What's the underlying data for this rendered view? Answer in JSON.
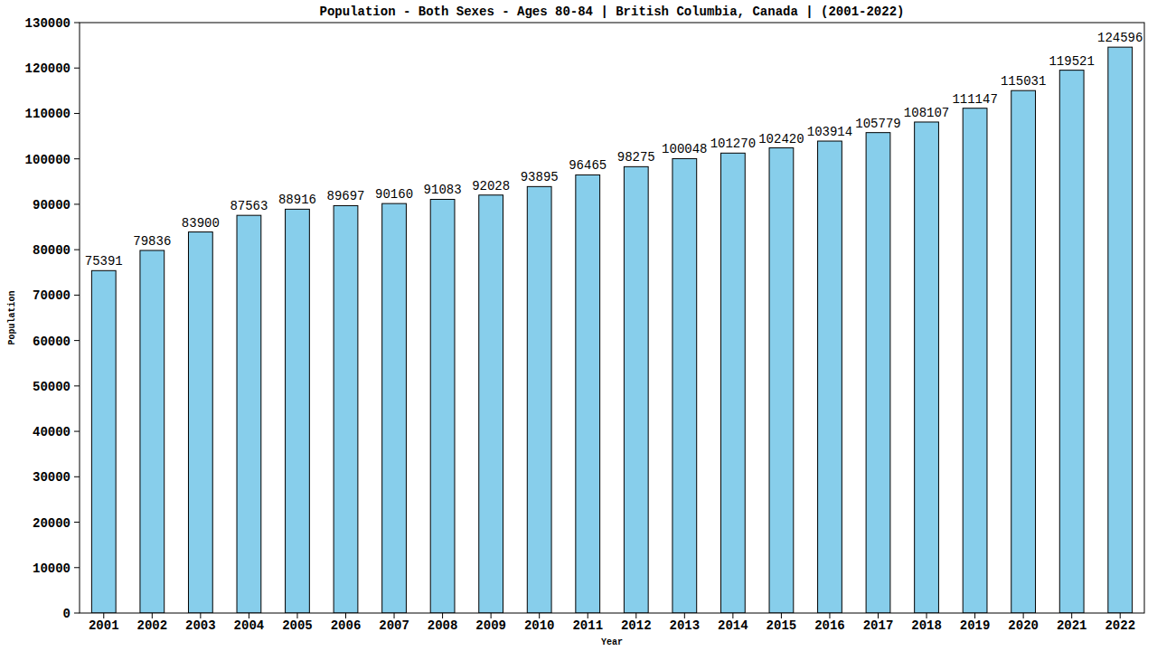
{
  "chart_data": {
    "type": "bar",
    "title": "Population - Both Sexes - Ages 80-84 | British Columbia, Canada |  (2001-2022)",
    "x_label": "Year",
    "y_label": "Population",
    "categories": [
      "2001",
      "2002",
      "2003",
      "2004",
      "2005",
      "2006",
      "2007",
      "2008",
      "2009",
      "2010",
      "2011",
      "2012",
      "2013",
      "2014",
      "2015",
      "2016",
      "2017",
      "2018",
      "2019",
      "2020",
      "2021",
      "2022"
    ],
    "values": [
      75391,
      79836,
      83900,
      87563,
      88916,
      89697,
      90160,
      91083,
      92028,
      93895,
      96465,
      98275,
      100048,
      101270,
      102420,
      103914,
      105779,
      108107,
      111147,
      115031,
      119521,
      124596
    ],
    "color": "#87ceeb",
    "ylim": [
      0,
      130000
    ],
    "yticks": [
      0,
      10000,
      20000,
      30000,
      40000,
      50000,
      60000,
      70000,
      80000,
      90000,
      100000,
      110000,
      120000,
      130000
    ],
    "grid": false,
    "data_labels": true
  }
}
